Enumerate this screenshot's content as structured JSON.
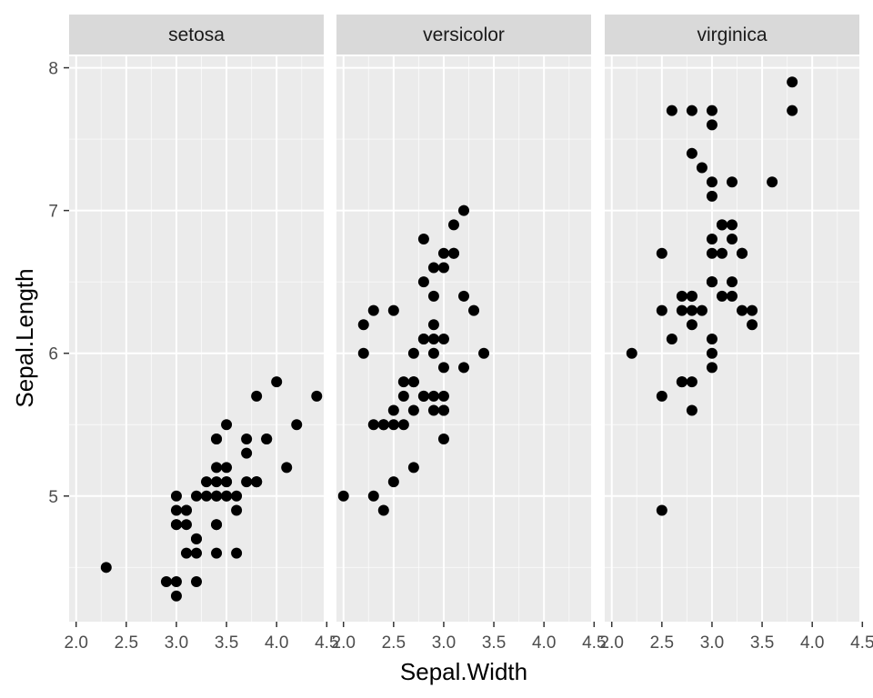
{
  "chart_data": {
    "type": "scatter",
    "xlabel": "Sepal.Width",
    "ylabel": "Sepal.Length",
    "xlim": [
      1.93,
      4.47
    ],
    "ylim": [
      4.12,
      8.08
    ],
    "x_ticks": [
      2.0,
      2.5,
      3.0,
      3.5,
      4.0,
      4.5
    ],
    "x_tick_labels": [
      "2.0",
      "2.5",
      "3.0",
      "3.5",
      "4.0",
      "4.5"
    ],
    "y_ticks": [
      5,
      6,
      7,
      8
    ],
    "y_tick_labels": [
      "5",
      "6",
      "7",
      "8"
    ],
    "grid": true,
    "colors": {
      "panel_background": "#ebebeb",
      "strip_background": "#d9d9d9",
      "grid_major": "#ffffff",
      "point": "#000000"
    },
    "facets": [
      {
        "name": "setosa",
        "points": [
          [
            3.5,
            5.1
          ],
          [
            3.0,
            4.9
          ],
          [
            3.2,
            4.7
          ],
          [
            3.1,
            4.6
          ],
          [
            3.6,
            5.0
          ],
          [
            3.9,
            5.4
          ],
          [
            3.4,
            4.6
          ],
          [
            3.4,
            5.0
          ],
          [
            2.9,
            4.4
          ],
          [
            3.1,
            4.9
          ],
          [
            3.7,
            5.4
          ],
          [
            3.4,
            4.8
          ],
          [
            3.0,
            4.8
          ],
          [
            3.0,
            4.3
          ],
          [
            4.0,
            5.8
          ],
          [
            4.4,
            5.7
          ],
          [
            3.9,
            5.4
          ],
          [
            3.5,
            5.1
          ],
          [
            3.8,
            5.7
          ],
          [
            3.8,
            5.1
          ],
          [
            3.4,
            5.4
          ],
          [
            3.7,
            5.1
          ],
          [
            3.6,
            4.6
          ],
          [
            3.3,
            5.1
          ],
          [
            3.4,
            4.8
          ],
          [
            3.0,
            5.0
          ],
          [
            3.4,
            5.0
          ],
          [
            3.5,
            5.2
          ],
          [
            3.4,
            5.2
          ],
          [
            3.2,
            4.7
          ],
          [
            3.1,
            4.8
          ],
          [
            3.4,
            5.4
          ],
          [
            4.1,
            5.2
          ],
          [
            4.2,
            5.5
          ],
          [
            3.1,
            4.9
          ],
          [
            3.2,
            5.0
          ],
          [
            3.5,
            5.5
          ],
          [
            3.6,
            4.9
          ],
          [
            3.0,
            4.4
          ],
          [
            3.4,
            5.1
          ],
          [
            3.5,
            5.0
          ],
          [
            2.3,
            4.5
          ],
          [
            3.2,
            4.4
          ],
          [
            3.5,
            5.0
          ],
          [
            3.8,
            5.1
          ],
          [
            3.0,
            4.8
          ],
          [
            3.8,
            5.1
          ],
          [
            3.2,
            4.6
          ],
          [
            3.7,
            5.3
          ],
          [
            3.3,
            5.0
          ]
        ]
      },
      {
        "name": "versicolor",
        "points": [
          [
            3.2,
            7.0
          ],
          [
            3.2,
            6.4
          ],
          [
            3.1,
            6.9
          ],
          [
            2.3,
            5.5
          ],
          [
            2.8,
            6.5
          ],
          [
            2.8,
            5.7
          ],
          [
            3.3,
            6.3
          ],
          [
            2.4,
            4.9
          ],
          [
            2.9,
            6.6
          ],
          [
            2.7,
            5.2
          ],
          [
            2.0,
            5.0
          ],
          [
            3.0,
            5.9
          ],
          [
            2.2,
            6.0
          ],
          [
            2.9,
            6.1
          ],
          [
            2.9,
            5.6
          ],
          [
            3.1,
            6.7
          ],
          [
            3.0,
            5.6
          ],
          [
            2.7,
            5.8
          ],
          [
            2.2,
            6.2
          ],
          [
            2.5,
            5.6
          ],
          [
            3.2,
            5.9
          ],
          [
            2.8,
            6.1
          ],
          [
            2.5,
            6.3
          ],
          [
            2.8,
            6.1
          ],
          [
            2.9,
            6.4
          ],
          [
            3.0,
            6.6
          ],
          [
            2.8,
            6.8
          ],
          [
            3.0,
            6.7
          ],
          [
            2.9,
            6.0
          ],
          [
            2.6,
            5.7
          ],
          [
            2.4,
            5.5
          ],
          [
            2.4,
            5.5
          ],
          [
            2.7,
            5.8
          ],
          [
            2.7,
            6.0
          ],
          [
            3.0,
            5.4
          ],
          [
            3.4,
            6.0
          ],
          [
            3.1,
            6.7
          ],
          [
            2.3,
            6.3
          ],
          [
            3.0,
            5.6
          ],
          [
            2.5,
            5.5
          ],
          [
            2.6,
            5.5
          ],
          [
            3.0,
            6.1
          ],
          [
            2.6,
            5.8
          ],
          [
            2.3,
            5.0
          ],
          [
            2.7,
            5.6
          ],
          [
            3.0,
            5.7
          ],
          [
            2.9,
            5.7
          ],
          [
            2.9,
            6.2
          ],
          [
            2.5,
            5.1
          ],
          [
            2.8,
            5.7
          ]
        ]
      },
      {
        "name": "virginica",
        "points": [
          [
            3.3,
            6.3
          ],
          [
            2.7,
            5.8
          ],
          [
            3.0,
            7.1
          ],
          [
            2.9,
            6.3
          ],
          [
            3.0,
            6.5
          ],
          [
            3.0,
            7.6
          ],
          [
            2.5,
            4.9
          ],
          [
            2.9,
            7.3
          ],
          [
            2.5,
            6.7
          ],
          [
            3.6,
            7.2
          ],
          [
            3.2,
            6.5
          ],
          [
            2.7,
            6.4
          ],
          [
            3.0,
            6.8
          ],
          [
            2.5,
            5.7
          ],
          [
            2.8,
            5.8
          ],
          [
            3.2,
            6.4
          ],
          [
            3.0,
            6.5
          ],
          [
            3.8,
            7.7
          ],
          [
            2.6,
            7.7
          ],
          [
            2.2,
            6.0
          ],
          [
            3.2,
            6.9
          ],
          [
            2.8,
            5.6
          ],
          [
            2.8,
            7.7
          ],
          [
            2.7,
            6.3
          ],
          [
            3.3,
            6.7
          ],
          [
            3.2,
            7.2
          ],
          [
            2.8,
            6.2
          ],
          [
            3.0,
            6.1
          ],
          [
            2.8,
            6.4
          ],
          [
            3.0,
            7.2
          ],
          [
            2.8,
            7.4
          ],
          [
            3.8,
            7.9
          ],
          [
            2.8,
            6.4
          ],
          [
            2.8,
            6.3
          ],
          [
            2.6,
            6.1
          ],
          [
            3.0,
            7.7
          ],
          [
            3.4,
            6.3
          ],
          [
            3.1,
            6.4
          ],
          [
            3.0,
            6.0
          ],
          [
            3.1,
            6.9
          ],
          [
            3.1,
            6.7
          ],
          [
            3.1,
            6.9
          ],
          [
            2.7,
            5.8
          ],
          [
            3.2,
            6.8
          ],
          [
            3.3,
            6.7
          ],
          [
            3.0,
            6.7
          ],
          [
            2.5,
            6.3
          ],
          [
            3.0,
            6.5
          ],
          [
            3.4,
            6.2
          ],
          [
            3.0,
            5.9
          ]
        ]
      }
    ]
  }
}
